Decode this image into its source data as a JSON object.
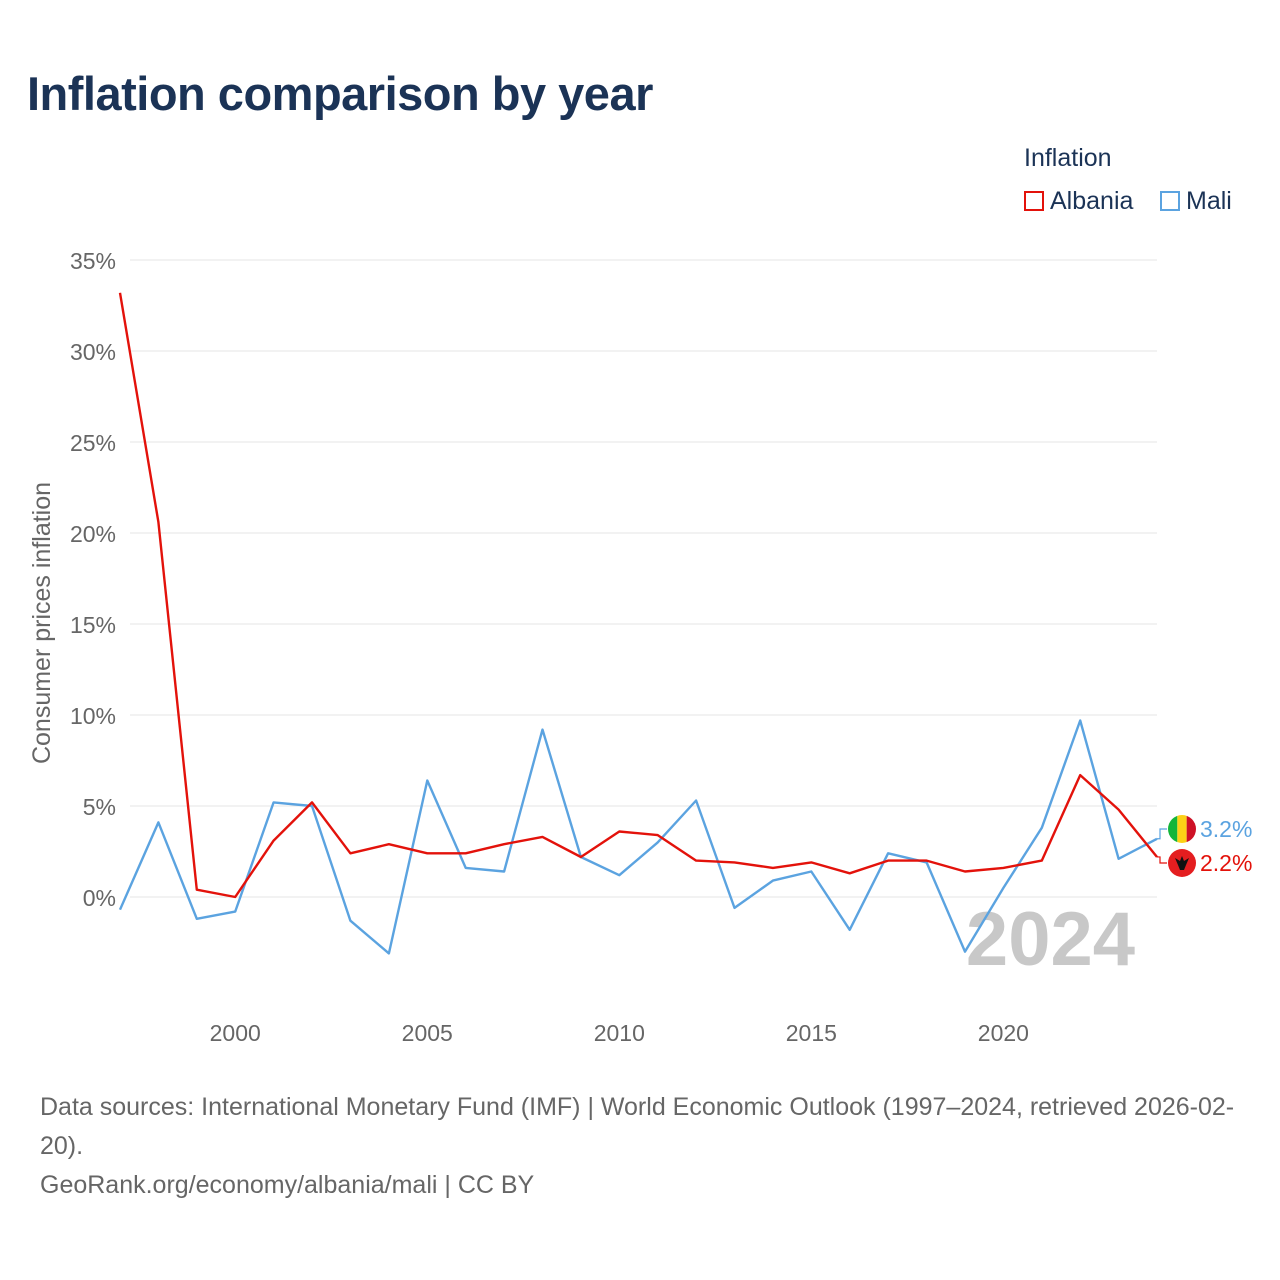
{
  "title": "Inflation comparison by year",
  "legend": {
    "title": "Inflation",
    "items": [
      {
        "label": "Albania",
        "color": "#e3120b"
      },
      {
        "label": "Mali",
        "color": "#5ba3e0"
      }
    ]
  },
  "watermark_year": "2024",
  "chart_data": {
    "type": "line",
    "title": "Inflation comparison by year",
    "xlabel": "",
    "ylabel": "Consumer prices inflation",
    "ylim": [
      -5.5,
      35
    ],
    "xlim": [
      1997,
      2024
    ],
    "yticks": [
      0,
      5,
      10,
      15,
      20,
      25,
      30,
      35
    ],
    "ytick_labels": [
      "0%",
      "5%",
      "10%",
      "15%",
      "20%",
      "25%",
      "30%",
      "35%"
    ],
    "xticks": [
      2000,
      2005,
      2010,
      2015,
      2020
    ],
    "xtick_labels": [
      "2000",
      "2005",
      "2010",
      "2015",
      "2020"
    ],
    "grid": true,
    "legend_position": "top-right",
    "x": [
      1997,
      1998,
      1999,
      2000,
      2001,
      2002,
      2003,
      2004,
      2005,
      2006,
      2007,
      2008,
      2009,
      2010,
      2011,
      2012,
      2013,
      2014,
      2015,
      2016,
      2017,
      2018,
      2019,
      2020,
      2021,
      2022,
      2023,
      2024
    ],
    "series": [
      {
        "name": "Albania",
        "color": "#e3120b",
        "values": [
          33.2,
          20.6,
          0.4,
          0.0,
          3.1,
          5.2,
          2.4,
          2.9,
          2.4,
          2.4,
          2.9,
          3.3,
          2.2,
          3.6,
          3.4,
          2.0,
          1.9,
          1.6,
          1.9,
          1.3,
          2.0,
          2.0,
          1.4,
          1.6,
          2.0,
          6.7,
          4.8,
          2.2
        ],
        "end_label": "2.2%"
      },
      {
        "name": "Mali",
        "color": "#5ba3e0",
        "values": [
          -0.7,
          4.1,
          -1.2,
          -0.8,
          5.2,
          5.0,
          -1.3,
          -3.1,
          6.4,
          1.6,
          1.4,
          9.2,
          2.2,
          1.2,
          3.0,
          5.3,
          -0.6,
          0.9,
          1.4,
          -1.8,
          2.4,
          1.9,
          -3.0,
          0.5,
          3.8,
          9.7,
          2.1,
          3.2
        ],
        "end_label": "3.2%"
      }
    ]
  },
  "source": {
    "line1": "Data sources: International Monetary Fund (IMF) | World Economic Outlook (1997–2024, retrieved 2026-02-20).",
    "line2": "GeoRank.org/economy/albania/mali | CC BY"
  }
}
